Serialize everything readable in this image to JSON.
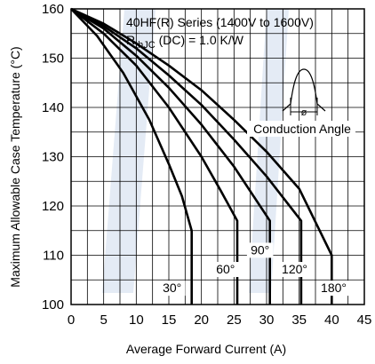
{
  "chart_data": {
    "type": "line",
    "title": "",
    "xlabel": "Average Forward Current (A)",
    "ylabel": "Maximum Allowable Case Temperature (°C)",
    "xlim": [
      0,
      45
    ],
    "ylim": [
      100,
      160
    ],
    "xticks": [
      0,
      5,
      10,
      15,
      20,
      25,
      30,
      35,
      40,
      45
    ],
    "yticks": [
      100,
      110,
      120,
      130,
      140,
      150,
      160
    ],
    "grid": true,
    "annotation": {
      "line1": "40HF(R) Series (1400V to 1600V)",
      "line2_prefix": "R",
      "line2_sub": "thJC",
      "line2_suffix": " (DC) = 1.0 K/W",
      "inset_label": "Conduction Angle",
      "inset_symbol": "ø"
    },
    "series": [
      {
        "name": "30°",
        "x": [
          0,
          4,
          8,
          12,
          15,
          17,
          18.5,
          18.5
        ],
        "y": [
          160,
          154.5,
          147,
          137.5,
          128.5,
          122,
          115,
          100
        ]
      },
      {
        "name": "60°",
        "x": [
          0,
          5,
          10,
          15,
          20,
          23,
          25.5,
          25.5
        ],
        "y": [
          160,
          155,
          148.5,
          140,
          130,
          123,
          117,
          100
        ]
      },
      {
        "name": "90°",
        "x": [
          0,
          5,
          10,
          15,
          20,
          25,
          30.5,
          30.5
        ],
        "y": [
          160,
          156,
          150.5,
          144,
          136.5,
          128,
          117,
          100
        ]
      },
      {
        "name": "120°",
        "x": [
          0,
          5,
          10,
          15,
          20,
          25,
          30,
          35.3,
          35.3
        ],
        "y": [
          160,
          156.5,
          152,
          146.5,
          140.5,
          133.5,
          126,
          117,
          100
        ]
      },
      {
        "name": "180°",
        "x": [
          0,
          5,
          10,
          15,
          20,
          25,
          30,
          35,
          40,
          40
        ],
        "y": [
          160,
          157,
          153,
          148.5,
          143.5,
          137.5,
          131,
          123.5,
          110,
          100
        ]
      }
    ],
    "series_labels": [
      "30°",
      "60°",
      "90°",
      "120°",
      "180°"
    ]
  }
}
